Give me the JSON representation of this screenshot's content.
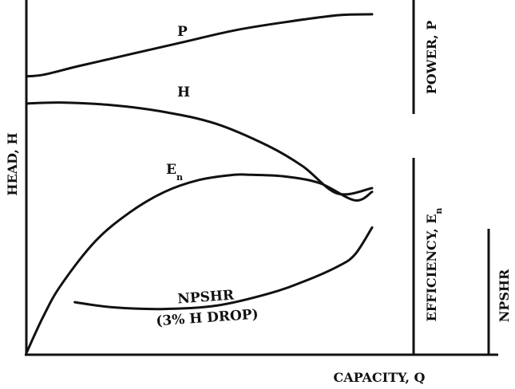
{
  "chart_data": {
    "type": "line",
    "title": "",
    "xlabel": "CAPACITY,  Q",
    "ylabel": "HEAD,  H",
    "secondary_axes": [
      {
        "id": "power",
        "label": "POWER,  P"
      },
      {
        "id": "efficiency",
        "label": "EFFICIENCY,  E",
        "subscript": "n"
      },
      {
        "id": "npshr",
        "label": "NPSHR"
      }
    ],
    "grid": false,
    "legend": "none",
    "x_range": [
      0,
      100
    ],
    "y_range": [
      0,
      100
    ],
    "note": "",
    "series": [
      {
        "id": "P",
        "name": "P",
        "label_sub": "",
        "x": [
          0,
          5,
          15,
          30,
          45,
          60,
          75,
          90,
          100
        ],
        "y": [
          81.5,
          82,
          84.5,
          88,
          91.5,
          95,
          97.5,
          99.5,
          99.8
        ]
      },
      {
        "id": "H",
        "name": "H",
        "label_sub": "",
        "x": [
          0,
          10,
          25,
          40,
          55,
          70,
          80,
          90,
          100
        ],
        "y": [
          73.5,
          73.8,
          73,
          71,
          67.5,
          61,
          55,
          47,
          48.6
        ]
      },
      {
        "id": "En",
        "name": "E",
        "label_sub": "n",
        "x": [
          0,
          5,
          10,
          20,
          30,
          40,
          50,
          60,
          65,
          75,
          85,
          95,
          100
        ],
        "y": [
          0,
          11,
          20,
          33,
          41.5,
          47.5,
          51,
          52.5,
          52.5,
          52,
          50,
          45,
          47.5
        ]
      },
      {
        "id": "NPSHR",
        "name": "NPSHR",
        "label_sub": "",
        "sublabel": "(3% H DROP)",
        "x": [
          14,
          25,
          40,
          55,
          70,
          80,
          90,
          95,
          100
        ],
        "y": [
          15,
          13.5,
          13,
          14,
          17.5,
          21,
          25.5,
          29,
          37
        ]
      }
    ]
  }
}
